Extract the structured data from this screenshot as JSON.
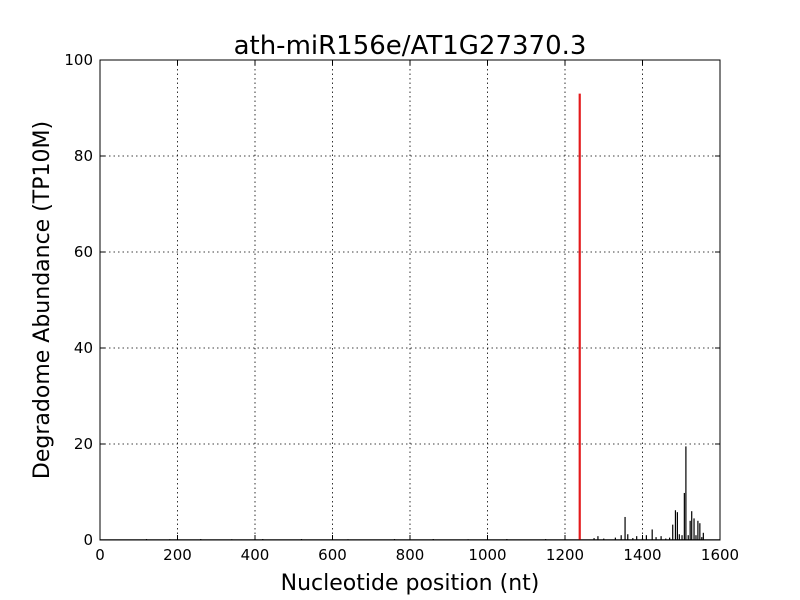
{
  "chart_data": {
    "type": "bar",
    "title": "ath-miR156e/AT1G27370.3",
    "xlabel": "Nucleotide position (nt)",
    "ylabel": "Degradome Abundance (TP10M)",
    "xlim": [
      0,
      1600
    ],
    "ylim": [
      0,
      100
    ],
    "xticks": [
      "0",
      "200",
      "400",
      "600",
      "800",
      "1000",
      "1200",
      "1400",
      "1600"
    ],
    "yticks": [
      "0",
      "20",
      "40",
      "60",
      "80",
      "100"
    ],
    "grid": true,
    "colors": {
      "target": "#e41a1c",
      "background": "#000000"
    },
    "target_site": {
      "x": 1238,
      "y": 93
    },
    "series": [
      {
        "points": [
          [
            120,
            0.2
          ],
          [
            180,
            0.15
          ],
          [
            260,
            0.2
          ],
          [
            340,
            0.15
          ],
          [
            420,
            0.2
          ],
          [
            520,
            0.2
          ],
          [
            640,
            0.15
          ],
          [
            760,
            0.2
          ],
          [
            860,
            0.2
          ],
          [
            950,
            0.15
          ],
          [
            1050,
            0.2
          ],
          [
            1150,
            0.2
          ],
          [
            1275,
            0.4
          ],
          [
            1285,
            0.8
          ],
          [
            1300,
            0.3
          ],
          [
            1330,
            0.5
          ],
          [
            1345,
            1.0
          ],
          [
            1355,
            4.8
          ],
          [
            1362,
            1.2
          ],
          [
            1375,
            0.4
          ],
          [
            1385,
            0.8
          ],
          [
            1400,
            0.4
          ],
          [
            1410,
            1.0
          ],
          [
            1425,
            2.2
          ],
          [
            1435,
            0.6
          ],
          [
            1448,
            0.8
          ],
          [
            1460,
            0.3
          ],
          [
            1470,
            0.5
          ],
          [
            1478,
            3.2
          ],
          [
            1485,
            6.2
          ],
          [
            1490,
            5.8
          ],
          [
            1495,
            1.2
          ],
          [
            1502,
            1.0
          ],
          [
            1508,
            9.8
          ],
          [
            1512,
            19.5
          ],
          [
            1518,
            1.0
          ],
          [
            1523,
            4.0
          ],
          [
            1527,
            6.0
          ],
          [
            1533,
            4.5
          ],
          [
            1538,
            1.0
          ],
          [
            1543,
            4.0
          ],
          [
            1548,
            3.5
          ],
          [
            1553,
            0.6
          ],
          [
            1557,
            1.5
          ]
        ]
      }
    ]
  }
}
